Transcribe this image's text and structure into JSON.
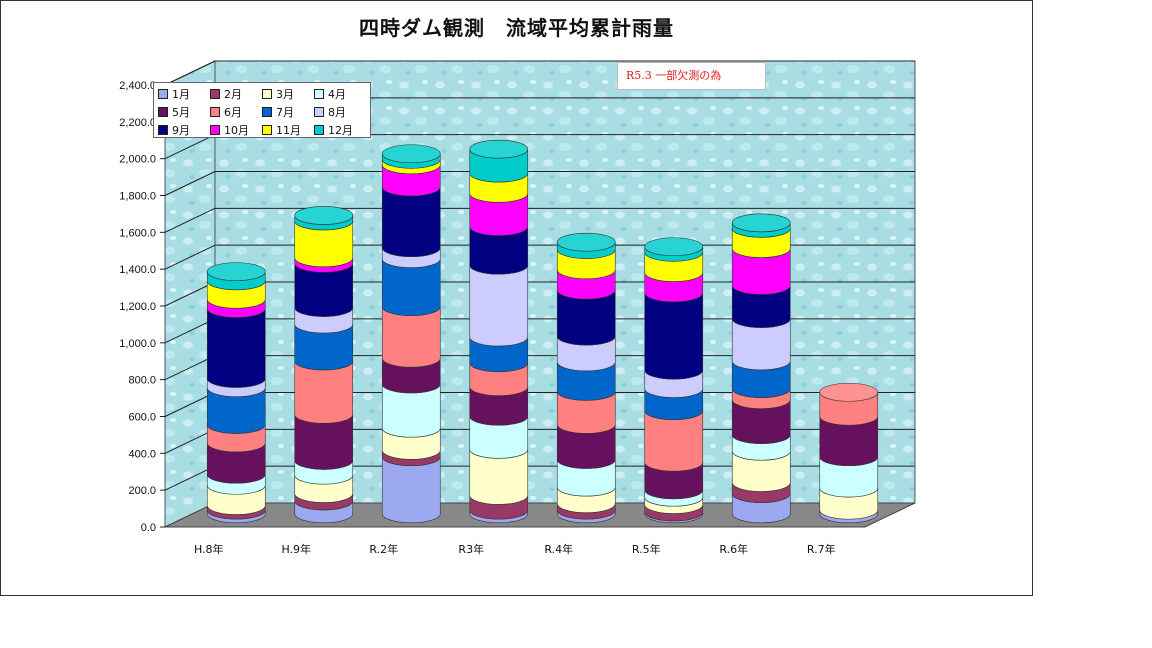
{
  "chart_data": {
    "type": "bar",
    "stacked": true,
    "title": "四時ダム観測　流域平均累計雨量",
    "categories": [
      "H.8年",
      "H.9年",
      "R.2年",
      "R3年",
      "R.4年",
      "R.5年",
      "R.6年",
      "R.7年"
    ],
    "ylim": [
      0,
      2400
    ],
    "yticks": [
      "0.0",
      "200.0",
      "400.0",
      "600.0",
      "800.0",
      "1,000.0",
      "1,200.0",
      "1,400.0",
      "1,600.0",
      "1,800.0",
      "2,000.0",
      "2,200.0",
      "2,400.0"
    ],
    "grid": true,
    "legend_position": "top-left",
    "annotation": "R5.3 一部欠測の為",
    "series": [
      {
        "name": "1月",
        "color": "#9ca8f0",
        "values": [
          20,
          70,
          310,
          20,
          20,
          10,
          110,
          20
        ]
      },
      {
        "name": "2月",
        "color": "#993a66",
        "values": [
          25,
          40,
          35,
          80,
          35,
          40,
          60,
          0
        ]
      },
      {
        "name": "3月",
        "color": "#ffffcc",
        "values": [
          110,
          100,
          120,
          250,
          90,
          40,
          170,
          120
        ]
      },
      {
        "name": "4月",
        "color": "#ccffff",
        "values": [
          60,
          80,
          240,
          180,
          150,
          40,
          90,
          170
        ]
      },
      {
        "name": "5月",
        "color": "#66115e",
        "values": [
          170,
          250,
          140,
          160,
          190,
          150,
          190,
          220
        ]
      },
      {
        "name": "6月",
        "color": "#ff8080",
        "values": [
          100,
          290,
          280,
          130,
          180,
          280,
          60,
          130
        ]
      },
      {
        "name": "7月",
        "color": "#0066cc",
        "values": [
          200,
          200,
          260,
          140,
          160,
          120,
          150,
          0
        ]
      },
      {
        "name": "8月",
        "color": "#ccccff",
        "values": [
          50,
          90,
          60,
          390,
          140,
          100,
          230,
          0
        ]
      },
      {
        "name": "9月",
        "color": "#000080",
        "values": [
          380,
          240,
          330,
          210,
          250,
          420,
          180,
          0
        ]
      },
      {
        "name": "10月",
        "color": "#ff00ff",
        "values": [
          50,
          30,
          120,
          180,
          110,
          110,
          200,
          0
        ]
      },
      {
        "name": "11月",
        "color": "#ffff00",
        "values": [
          100,
          200,
          30,
          110,
          110,
          110,
          110,
          0
        ]
      },
      {
        "name": "12月",
        "color": "#00cccc",
        "values": [
          50,
          30,
          30,
          130,
          40,
          30,
          30,
          0
        ]
      }
    ]
  }
}
